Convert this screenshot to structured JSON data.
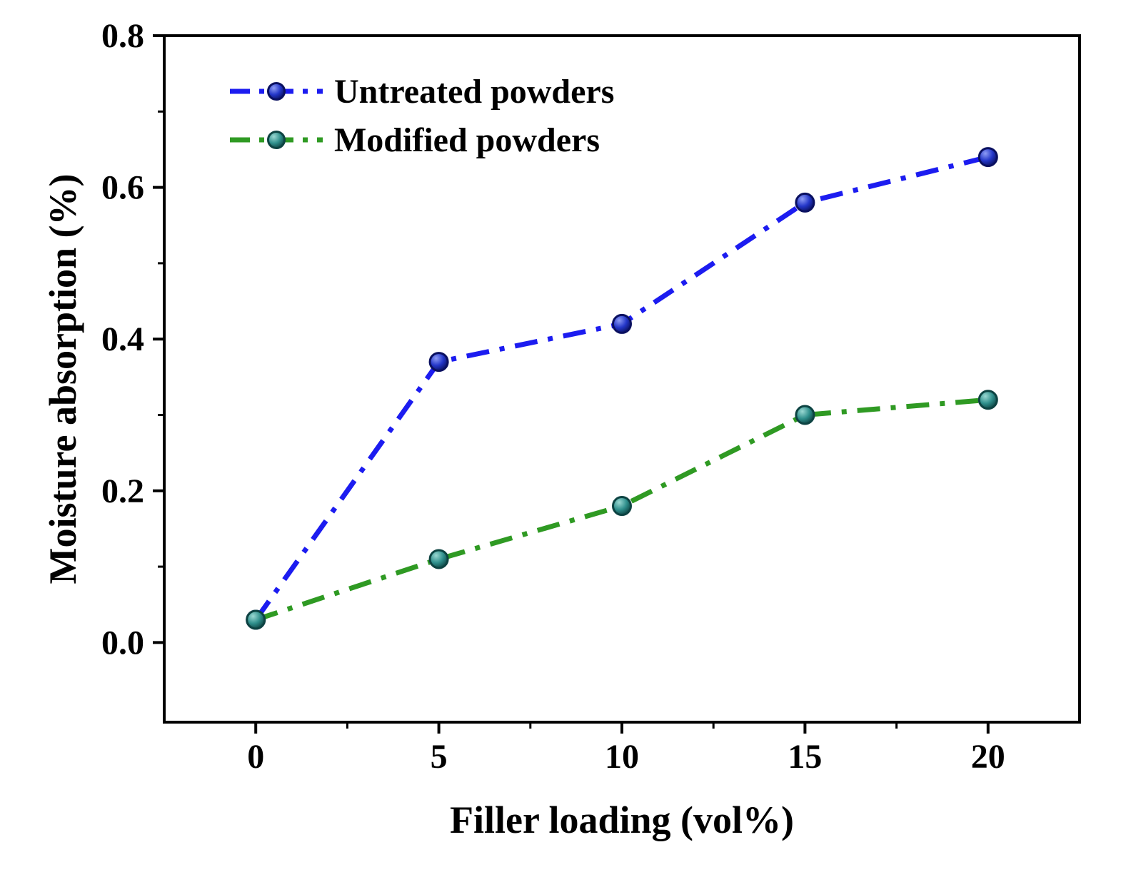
{
  "chart_data": {
    "type": "line",
    "title": "",
    "xlabel": "Filler loading (vol%)",
    "ylabel": "Moisture absorption (%)",
    "x": [
      0,
      5,
      10,
      15,
      20
    ],
    "series": [
      {
        "name": "Untreated powders",
        "values": [
          0.03,
          0.37,
          0.42,
          0.58,
          0.64
        ],
        "line_color": "#1c1cf0",
        "line_style": "dash-dot",
        "marker": "sphere",
        "marker_light": "#8e9cf5",
        "marker_fill": "#2336c8",
        "marker_edge": "#0a1060"
      },
      {
        "name": "Modified powders",
        "values": [
          0.03,
          0.11,
          0.18,
          0.3,
          0.32
        ],
        "line_color": "#2f9a23",
        "line_style": "dash-dot",
        "marker": "sphere",
        "marker_light": "#9ad8d2",
        "marker_fill": "#2f8f8c",
        "marker_edge": "#0d4342"
      }
    ],
    "xlim": [
      -2.5,
      22.5
    ],
    "ylim": [
      -0.105,
      0.8
    ],
    "x_ticks": [
      0,
      5,
      10,
      15,
      20
    ],
    "y_ticks": [
      0.0,
      0.2,
      0.4,
      0.6,
      0.8
    ],
    "x_minor_step": 2.5,
    "y_minor_step": 0.1,
    "y_tick_decimals": 1,
    "grid": false,
    "legend_position": "top-left",
    "frame_color": "#000000",
    "background_color": "#ffffff"
  }
}
